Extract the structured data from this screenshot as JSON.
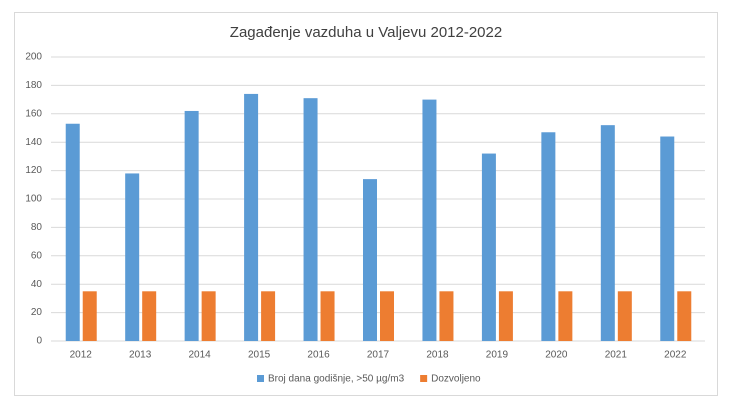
{
  "chart_data": {
    "type": "bar",
    "title": "Zagađenje vazduha u Valjevu 2012-2022",
    "categories": [
      "2012",
      "2013",
      "2014",
      "2015",
      "2016",
      "2017",
      "2018",
      "2019",
      "2020",
      "2021",
      "2022"
    ],
    "series": [
      {
        "name": "Broj dana godišnje, >50 µg/m3",
        "color": "#5b9bd5",
        "values": [
          153,
          118,
          162,
          174,
          171,
          114,
          170,
          132,
          147,
          152,
          144
        ]
      },
      {
        "name": "Dozvoljeno",
        "color": "#ed7d31",
        "values": [
          35,
          35,
          35,
          35,
          35,
          35,
          35,
          35,
          35,
          35,
          35
        ]
      }
    ],
    "ylim": [
      0,
      200
    ],
    "yticks": [
      0,
      20,
      40,
      60,
      80,
      100,
      120,
      140,
      160,
      180,
      200
    ],
    "grid": true,
    "legend": "bottom"
  }
}
